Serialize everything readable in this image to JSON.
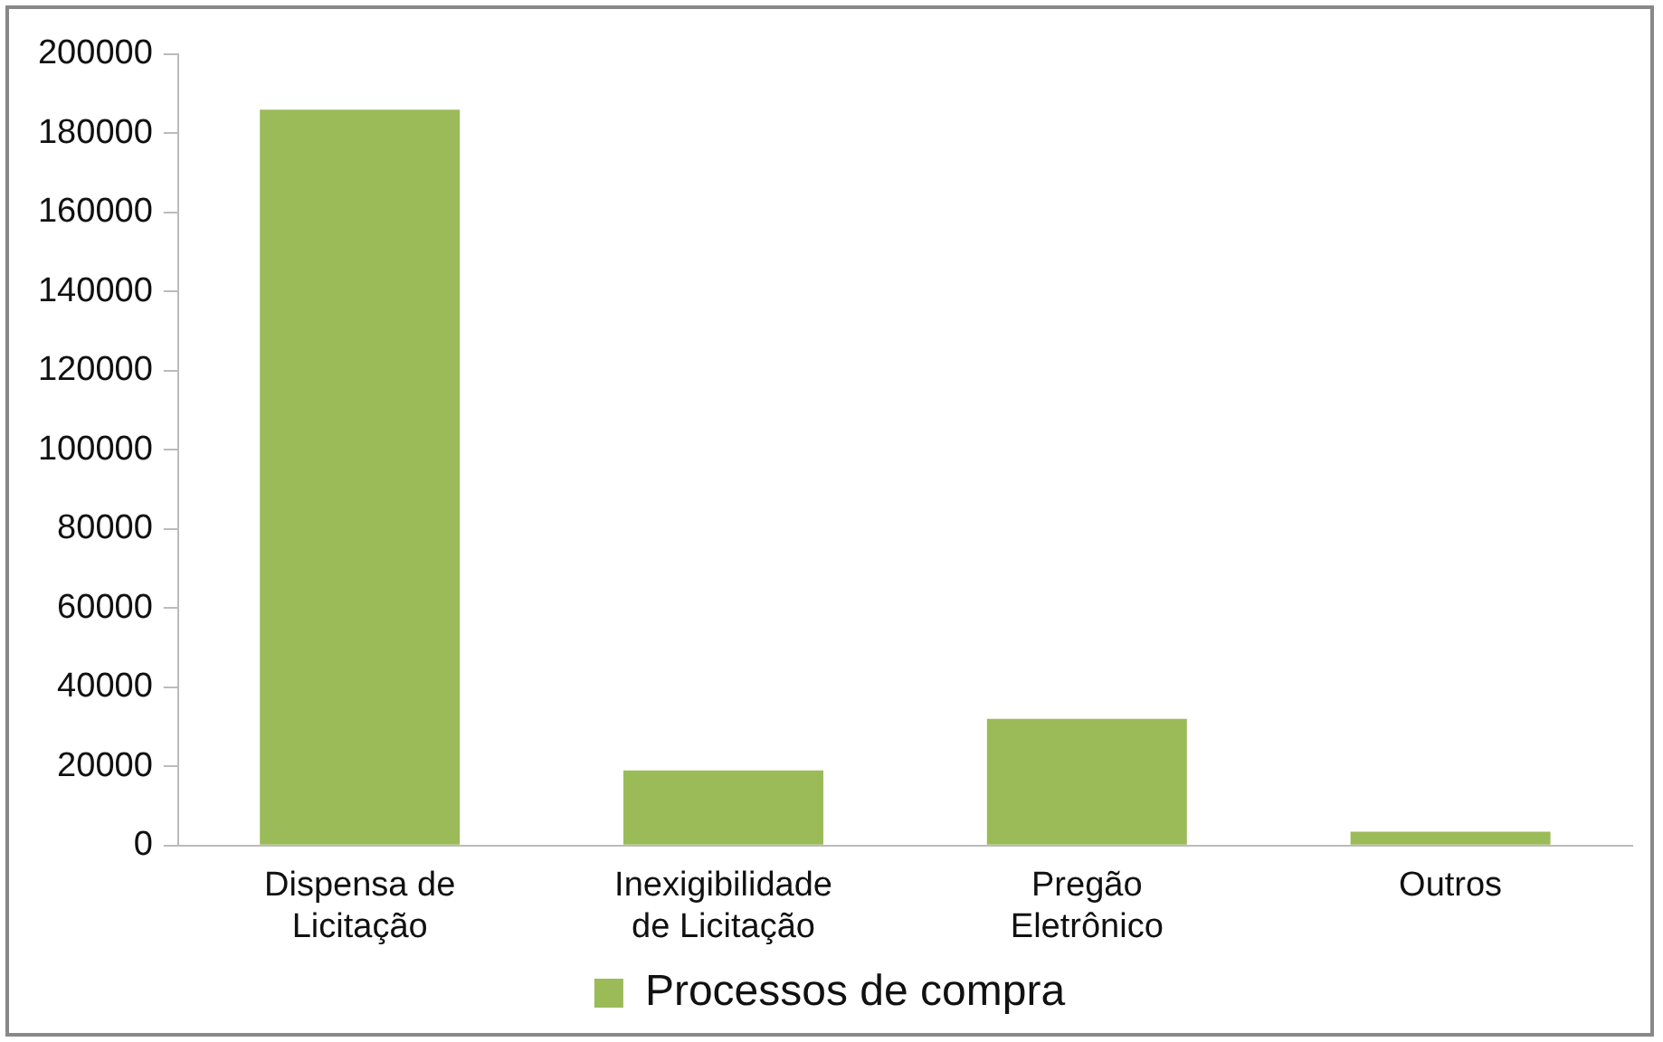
{
  "chart_data": {
    "type": "bar",
    "categories": [
      [
        "Dispensa de",
        "Licitação"
      ],
      [
        "Inexigibilidade",
        "de Licitação"
      ],
      [
        "Pregão",
        "Eletrônico"
      ],
      "Outros"
    ],
    "series": [
      {
        "name": "Processos de compra",
        "color": "#9bbb59",
        "values": [
          186000,
          19000,
          32000,
          3500
        ]
      }
    ],
    "ylim": [
      0,
      200000
    ],
    "yticks": [
      0,
      20000,
      40000,
      60000,
      80000,
      100000,
      120000,
      140000,
      160000,
      180000,
      200000
    ],
    "grid": false,
    "legend": "bottom"
  }
}
